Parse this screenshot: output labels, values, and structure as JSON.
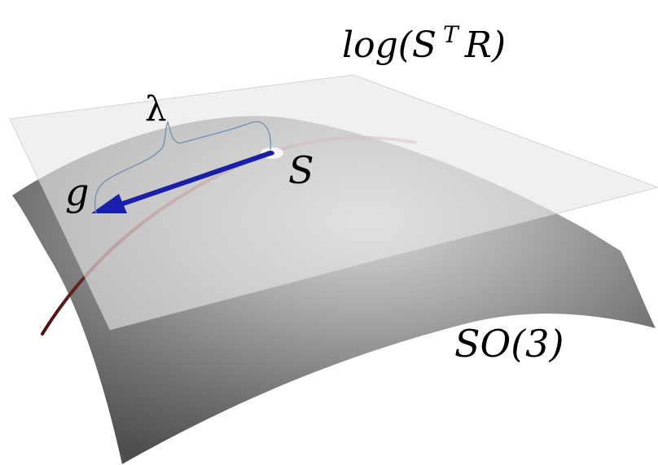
{
  "labels": {
    "tangent_plane": "log(S T R)",
    "tangent_plane_base": "log(S",
    "tangent_plane_sup": "T",
    "tangent_plane_tail": "R)",
    "manifold": "SO(3)",
    "point": "S",
    "vector": "g",
    "step": "λ"
  },
  "colors": {
    "manifold_dark": "#5a5a5a",
    "manifold_light": "#c8c8c8",
    "plane": "#e6e6e6",
    "geodesic": "#6b2a26",
    "arrow": "#1a1fa8",
    "brace": "#6f8fb0",
    "point_marker": "#ffffff"
  }
}
